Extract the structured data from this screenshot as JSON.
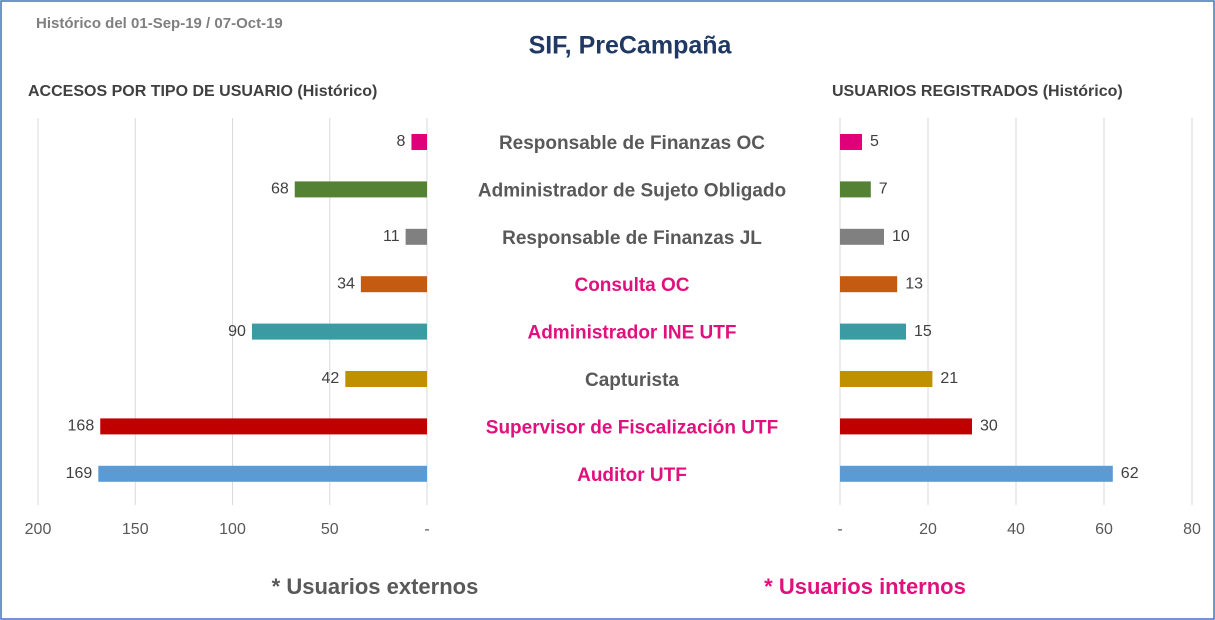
{
  "header": {
    "subtitle": "Histórico del 01-Sep-19 / 07-Oct-19",
    "title": "SIF, PreCampaña",
    "title_color": "#1f3864"
  },
  "chart_data": [
    {
      "type": "bar",
      "orientation": "horizontal",
      "title": "ACCESOS POR TIPO DE USUARIO (Histórico)",
      "categories": [
        "Responsable de Finanzas OC",
        "Administrador de Sujeto Obligado",
        "Responsable de Finanzas JL",
        "Consulta OC",
        "Administrador INE UTF",
        "Capturista",
        "Supervisor de Fiscalización UTF",
        "Auditor UTF"
      ],
      "category_colors": [
        "#595959",
        "#595959",
        "#595959",
        "#e0107d",
        "#e0107d",
        "#595959",
        "#e0107d",
        "#e0107d"
      ],
      "values": [
        8,
        68,
        11,
        34,
        90,
        42,
        168,
        169
      ],
      "colors": [
        "#e0007a",
        "#548235",
        "#808080",
        "#c55a11",
        "#3a9ba3",
        "#bf9000",
        "#c00000",
        "#5b9bd5"
      ],
      "xlim": [
        0,
        200
      ],
      "x_reversed": true,
      "xticks": [
        200,
        150,
        100,
        50,
        {
          "value": 0,
          "label": "-"
        }
      ],
      "grid": true
    },
    {
      "type": "bar",
      "orientation": "horizontal",
      "title": "USUARIOS REGISTRADOS (Histórico)",
      "values": [
        5,
        7,
        10,
        13,
        15,
        21,
        30,
        62
      ],
      "colors": [
        "#e0007a",
        "#548235",
        "#808080",
        "#c55a11",
        "#3a9ba3",
        "#bf9000",
        "#c00000",
        "#5b9bd5"
      ],
      "xlim": [
        0,
        80
      ],
      "x_reversed": false,
      "xticks": [
        {
          "value": 0,
          "label": "-"
        },
        20,
        40,
        60,
        80
      ],
      "grid": true
    }
  ],
  "legend": [
    {
      "label": "* Usuarios externos",
      "color": "#595959"
    },
    {
      "label": "* Usuarios internos",
      "color": "#e0107d"
    }
  ]
}
